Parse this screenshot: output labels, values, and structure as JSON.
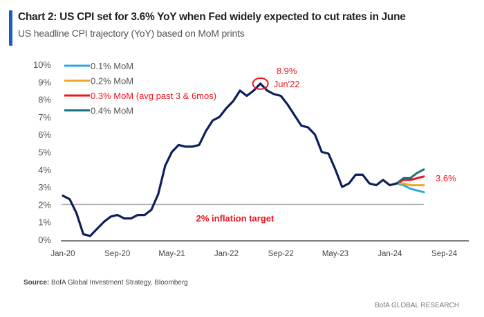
{
  "title": "Chart 2: US CPI set for 3.6% YoY when Fed widely expected to cut rates in June",
  "subtitle": "US headline CPI trajectory (YoY) based on MoM prints",
  "source_label": "Source:",
  "source_text": "BofA Global Investment Strategy, Bloomberg",
  "footer": "BofA GLOBAL RESEARCH",
  "chart_data": {
    "type": "line",
    "ylim": [
      0,
      10
    ],
    "yticks": [
      "0%",
      "1%",
      "2%",
      "3%",
      "4%",
      "5%",
      "6%",
      "7%",
      "8%",
      "9%",
      "10%"
    ],
    "xticks": [
      "Jan-20",
      "Sep-20",
      "May-21",
      "Jan-22",
      "Sep-22",
      "May-23",
      "Jan-24",
      "Sep-24"
    ],
    "x_start": "Jan-20",
    "x_end": "Sep-24",
    "grid": false,
    "legend_placement": "top-left",
    "actual": {
      "color": "#0d1f5c",
      "start": "Jan-20",
      "values": [
        2.5,
        2.3,
        1.5,
        0.3,
        0.2,
        0.6,
        1.0,
        1.3,
        1.4,
        1.2,
        1.2,
        1.4,
        1.4,
        1.7,
        2.6,
        4.2,
        5.0,
        5.4,
        5.3,
        5.3,
        5.4,
        6.2,
        6.8,
        7.0,
        7.5,
        7.9,
        8.5,
        8.2,
        8.5,
        8.9,
        8.5,
        8.3,
        8.2,
        7.7,
        7.1,
        6.5,
        6.4,
        6.0,
        5.0,
        4.9,
        4.0,
        3.0,
        3.2,
        3.7,
        3.7,
        3.2,
        3.1,
        3.4,
        3.1,
        3.2
      ]
    },
    "series": [
      {
        "name": "0.1% MoM",
        "color": "#29a8e0",
        "start": "Feb-24",
        "values": [
          3.2,
          3.1,
          2.9,
          2.8,
          2.7
        ]
      },
      {
        "name": "0.2% MoM",
        "color": "#f5a623",
        "start": "Feb-24",
        "values": [
          3.2,
          3.2,
          3.1,
          3.1,
          3.1
        ]
      },
      {
        "name": "0.3% MoM (avg past 3 & 6mos)",
        "color": "#f0141e",
        "start": "Feb-24",
        "values": [
          3.2,
          3.4,
          3.4,
          3.5,
          3.6
        ]
      },
      {
        "name": "0.4% MoM",
        "color": "#1a7080",
        "start": "Feb-24",
        "values": [
          3.2,
          3.5,
          3.5,
          3.8,
          4.0
        ]
      }
    ],
    "reference_line": {
      "value": 2,
      "label": "2% inflation target",
      "color": "#b0b0b0"
    },
    "annotations": [
      {
        "text_value": "8.9%",
        "text_date": "Jun'22",
        "x": "Jun-22",
        "y": 8.9
      },
      {
        "text": "3.6%",
        "x": "Jun-24",
        "y": 3.6
      }
    ]
  }
}
